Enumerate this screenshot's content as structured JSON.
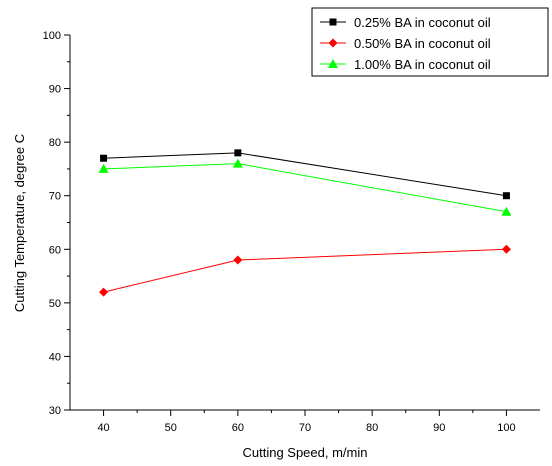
{
  "chart_data": {
    "type": "line",
    "title": "",
    "xlabel": "Cutting Speed, m/min",
    "ylabel": "Cutting Temperature, degree C",
    "xlim": [
      35,
      105
    ],
    "ylim": [
      30,
      100
    ],
    "xticks": [
      40,
      50,
      60,
      70,
      80,
      90,
      100
    ],
    "yticks": [
      30,
      40,
      50,
      60,
      70,
      80,
      90,
      100
    ],
    "grid": false,
    "legend_position": "top-right",
    "x": [
      40,
      60,
      100
    ],
    "series": [
      {
        "name": "0.25% BA in coconut oil",
        "values": [
          77,
          78,
          70
        ],
        "color": "#000000",
        "marker": "square"
      },
      {
        "name": "0.50% BA in coconut oil",
        "values": [
          52,
          58,
          60
        ],
        "color": "#ff0000",
        "marker": "diamond"
      },
      {
        "name": "1.00% BA in coconut oil",
        "values": [
          75,
          76,
          67
        ],
        "color": "#00ff00",
        "marker": "triangle"
      }
    ]
  }
}
